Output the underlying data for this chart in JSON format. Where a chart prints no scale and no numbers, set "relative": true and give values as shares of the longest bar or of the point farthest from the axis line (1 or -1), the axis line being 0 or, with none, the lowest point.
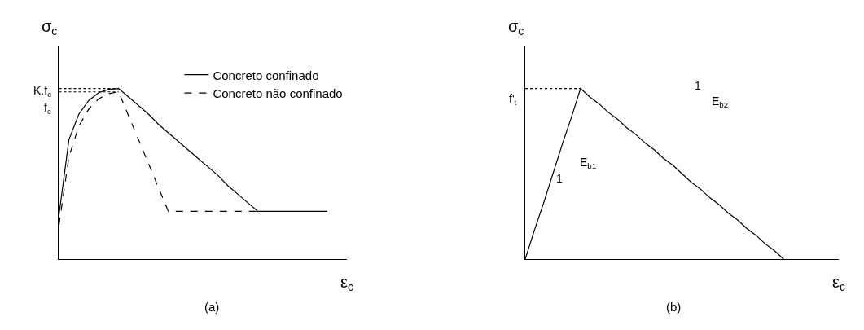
{
  "chart_data": [
    {
      "type": "line",
      "relative": true,
      "xlabel": "ε$_{c}$",
      "ylabel": "σ$_{c}$",
      "legend": "top right",
      "categories": [
        null,
        null,
        null,
        null,
        null,
        null,
        null,
        null,
        null,
        null,
        null,
        null,
        null,
        null,
        null,
        null,
        null,
        null,
        null,
        null,
        null,
        null,
        null,
        null,
        null,
        null,
        null,
        null
      ],
      "series": [
        {
          "name": "Concreto confinado",
          "color": "#000000",
          "line_style": "solid",
          "values": [
            0.26,
            0.7,
            0.85,
            0.93,
            0.975,
            0.995,
            1.0,
            0.95,
            0.9,
            0.85,
            0.79,
            0.74,
            0.69,
            0.64,
            0.59,
            0.54,
            0.49,
            0.43,
            0.38,
            0.33,
            0.28,
            0.28,
            0.28,
            0.28,
            0.28,
            0.28,
            0.28,
            0.28
          ]
        },
        {
          "name": "Concreto não confinado",
          "color": "#000000",
          "line_style": "dashed",
          "values": [
            0.2,
            0.6,
            0.78,
            0.88,
            0.94,
            0.97,
            0.98,
            0.84,
            0.7,
            0.56,
            0.42,
            0.28,
            0.28,
            0.28,
            0.28,
            0.28,
            0.28,
            0.28,
            0.28,
            0.28,
            0.28,
            null,
            null,
            null,
            null,
            null,
            null,
            null
          ]
        },
        {
          "color": "#000000",
          "line_style": "dotted",
          "values": [
            1.0,
            1.0,
            1.0,
            1.0,
            1.0,
            1.0,
            1.0,
            null,
            null,
            null,
            null,
            null,
            null,
            null,
            null,
            null,
            null,
            null,
            null,
            null,
            null,
            null,
            null,
            null,
            null,
            null,
            null,
            null
          ]
        },
        {
          "color": "#000000",
          "line_style": "dotted",
          "values": [
            0.98,
            0.98,
            0.98,
            0.98,
            0.98,
            0.98,
            0.98,
            null,
            null,
            null,
            null,
            null,
            null,
            null,
            null,
            null,
            null,
            null,
            null,
            null,
            null,
            null,
            null,
            null,
            null,
            null,
            null,
            null
          ]
        }
      ],
      "annotations": [
        "K.f$_{c}$",
        "f$_{c}$",
        "(a)"
      ]
    },
    {
      "type": "line",
      "relative": true,
      "xlabel": "ε$_{c}$",
      "ylabel": "σ$_{c}$",
      "categories": [
        null,
        null,
        null,
        null,
        null,
        null,
        null,
        null,
        null,
        null,
        null,
        null,
        null,
        null,
        null,
        null,
        null,
        null,
        null,
        null,
        null,
        null,
        null,
        null,
        null,
        null,
        null,
        null,
        null,
        null,
        null,
        null,
        null
      ],
      "series": [
        {
          "color": "#000000",
          "line_style": "solid",
          "values": [
            0,
            0.17,
            0.33,
            0.5,
            0.67,
            0.83,
            1.0,
            0.95,
            0.91,
            0.86,
            0.82,
            0.77,
            0.73,
            0.68,
            0.64,
            0.59,
            0.55,
            0.5,
            0.45,
            0.41,
            0.36,
            0.32,
            0.27,
            0.23,
            0.18,
            0.14,
            0.09,
            0.05,
            0,
            null,
            null,
            null,
            null
          ]
        },
        {
          "color": "#000000",
          "line_style": "dotted",
          "values": [
            1.0,
            1.0,
            1.0,
            1.0,
            1.0,
            1.0,
            1.0,
            null,
            null,
            null,
            null,
            null,
            null,
            null,
            null,
            null,
            null,
            null,
            null,
            null,
            null,
            null,
            null,
            null,
            null,
            null,
            null,
            null,
            null,
            null,
            null,
            null,
            null
          ]
        }
      ],
      "annotations": [
        "f'$_{t}$",
        "1",
        "E$_{b1}$",
        "1",
        "E$_{b2}$",
        "(b)"
      ]
    }
  ]
}
